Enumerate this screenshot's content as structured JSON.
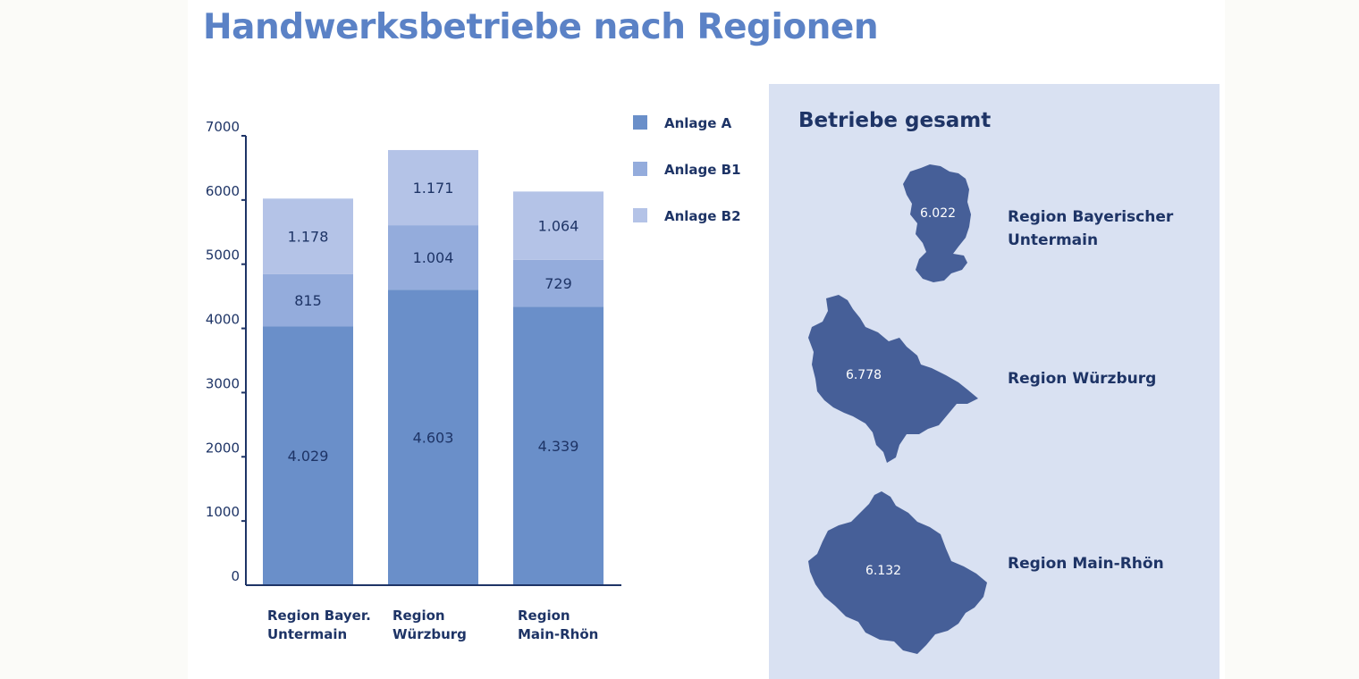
{
  "title": "Handwerksbetriebe nach Regionen",
  "colors": {
    "anlage_a": "#6a8fc9",
    "anlage_b1": "#94acdc",
    "anlage_b2": "#b4c3e7",
    "axis": "#1e3466",
    "map_fill": "#465f98",
    "panel_bg": "#d9e1f2"
  },
  "chart_data": {
    "type": "bar",
    "stacked": true,
    "categories": [
      "Region Bayer.\nUntermain",
      "Region\nWürzburg",
      "Region\nMain-Rhön"
    ],
    "series": [
      {
        "name": "Anlage A",
        "values": [
          4029,
          4603,
          4339
        ],
        "labels": [
          "4.029",
          "4.603",
          "4.339"
        ]
      },
      {
        "name": "Anlage B1",
        "values": [
          815,
          1004,
          729
        ],
        "labels": [
          "815",
          "1.004",
          "729"
        ]
      },
      {
        "name": "Anlage B2",
        "values": [
          1178,
          1171,
          1064
        ],
        "labels": [
          "1.178",
          "1.171",
          "1.064"
        ]
      }
    ],
    "yticks": [
      "0",
      "1000",
      "2000",
      "3000",
      "4000",
      "5000",
      "6000",
      "7000"
    ],
    "ylim": [
      0,
      7000
    ],
    "legend_position": "top-right",
    "grid": false
  },
  "totals_panel": {
    "title": "Betriebe gesamt",
    "regions": [
      {
        "name": "Region Bayerischer Untermain",
        "total": "6.022",
        "icon": "region-bayerischer-untermain-map"
      },
      {
        "name": "Region Würzburg",
        "total": "6.778",
        "icon": "region-wuerzburg-map"
      },
      {
        "name": "Region Main-Rhön",
        "total": "6.132",
        "icon": "region-main-rhoen-map"
      }
    ]
  }
}
